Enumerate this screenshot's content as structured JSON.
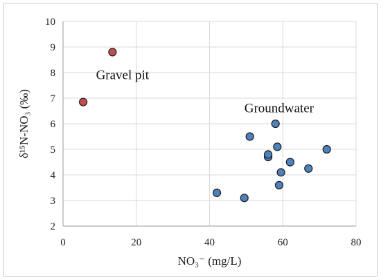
{
  "chart_data": {
    "type": "scatter",
    "title": "",
    "xlabel": "NO₃⁻ (mg/L)",
    "ylabel": "δ¹⁵N-NO₃ (‰)",
    "xlim": [
      0,
      80
    ],
    "ylim": [
      2,
      10
    ],
    "xticks": [
      "0",
      "20",
      "40",
      "60",
      "80"
    ],
    "yticks": [
      "2",
      "3",
      "4",
      "5",
      "6",
      "7",
      "8",
      "9",
      "10"
    ],
    "grid": true,
    "legend": "none",
    "series": [
      {
        "color": "#c0504d",
        "x": [
          5.5,
          13.5
        ],
        "y": [
          6.85,
          8.8
        ]
      },
      {
        "color": "#4f81bd",
        "x": [
          42,
          49.5,
          51,
          56,
          56,
          58,
          58.5,
          59,
          59.5,
          62,
          67,
          72
        ],
        "y": [
          3.3,
          3.1,
          5.5,
          4.7,
          4.8,
          6.0,
          5.1,
          3.6,
          4.1,
          4.5,
          4.25,
          5.0
        ]
      }
    ],
    "annotations": [
      {
        "text": "Gravel pit",
        "x": 9,
        "y": 7.75
      },
      {
        "text": "Groundwater",
        "x": 49.5,
        "y": 6.45
      }
    ]
  }
}
